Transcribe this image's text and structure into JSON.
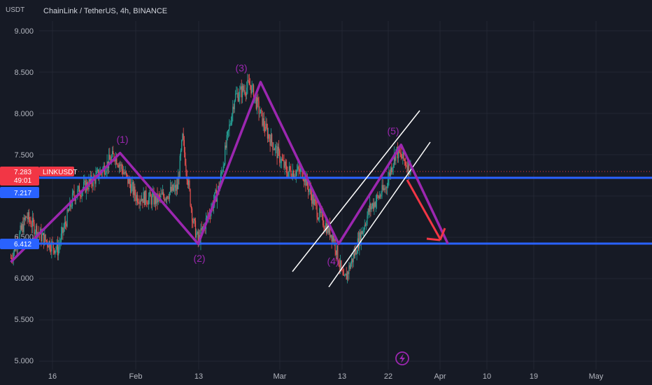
{
  "header": {
    "unit": "USDT",
    "symbol_title": "ChainLink / TetherUS, 4h, BINANCE"
  },
  "colors": {
    "background": "#161a25",
    "grid": "#232733",
    "up": "#26a69a",
    "down": "#ef5350",
    "wave": "#9c27b0",
    "level": "#2962ff",
    "channel": "#ffffff",
    "arrow": "#f23645"
  },
  "badges": {
    "price_symbol": "LINKUSDT",
    "price_value": "7.283",
    "countdown": "49:01",
    "level_upper": "7.217",
    "level_lower": "6.412"
  },
  "chart_data": {
    "type": "candlestick",
    "title": "ChainLink / TetherUS, 4h, BINANCE",
    "ylabel": "USDT",
    "y_ticks": [
      "9.000",
      "8.500",
      "8.000",
      "7.500",
      "6.500",
      "6.000",
      "5.500",
      "5.000"
    ],
    "x_ticks": [
      "16",
      "Feb",
      "13",
      "Mar",
      "13",
      "22",
      "Apr",
      "10",
      "19",
      "May"
    ],
    "ylim": [
      4.98,
      9.3
    ],
    "grid": true,
    "last_price": 7.283,
    "horizontal_levels": [
      7.217,
      6.412
    ],
    "elliott_wave": {
      "labels": [
        "(1)",
        "(2)",
        "(3)",
        "(4)",
        "(5)"
      ],
      "points": [
        {
          "x": "Jan 8",
          "y": 6.2
        },
        {
          "x": "Jan 29",
          "y": 7.52
        },
        {
          "x": "Feb 13",
          "y": 6.42
        },
        {
          "x": "Feb 25",
          "y": 8.38
        },
        {
          "x": "Mar 11",
          "y": 6.42
        },
        {
          "x": "Mar 23",
          "y": 7.62
        },
        {
          "x": "Apr 1",
          "y": 6.42
        }
      ]
    },
    "price_path": [
      {
        "x": "Jan 8",
        "y": 6.25
      },
      {
        "x": "Jan 11",
        "y": 6.75
      },
      {
        "x": "Jan 14",
        "y": 6.5
      },
      {
        "x": "Jan 17",
        "y": 6.35
      },
      {
        "x": "Jan 20",
        "y": 7.0
      },
      {
        "x": "Jan 24",
        "y": 7.2
      },
      {
        "x": "Jan 28",
        "y": 7.5
      },
      {
        "x": "Feb 1",
        "y": 7.0
      },
      {
        "x": "Feb 5",
        "y": 6.95
      },
      {
        "x": "Feb 9",
        "y": 7.1
      },
      {
        "x": "Feb 10",
        "y": 7.7
      },
      {
        "x": "Feb 12",
        "y": 6.7
      },
      {
        "x": "Feb 13",
        "y": 6.45
      },
      {
        "x": "Feb 17",
        "y": 7.1
      },
      {
        "x": "Feb 20",
        "y": 8.2
      },
      {
        "x": "Feb 23",
        "y": 8.35
      },
      {
        "x": "Feb 26",
        "y": 7.8
      },
      {
        "x": "Mar 1",
        "y": 7.3
      },
      {
        "x": "Mar 4",
        "y": 7.3
      },
      {
        "x": "Mar 7",
        "y": 6.8
      },
      {
        "x": "Mar 10",
        "y": 6.5
      },
      {
        "x": "Mar 12",
        "y": 5.95
      },
      {
        "x": "Mar 14",
        "y": 6.3
      },
      {
        "x": "Mar 17",
        "y": 6.85
      },
      {
        "x": "Mar 20",
        "y": 7.1
      },
      {
        "x": "Mar 22",
        "y": 7.55
      },
      {
        "x": "Mar 24",
        "y": 7.4
      },
      {
        "x": "Mar 25",
        "y": 7.28
      }
    ]
  }
}
